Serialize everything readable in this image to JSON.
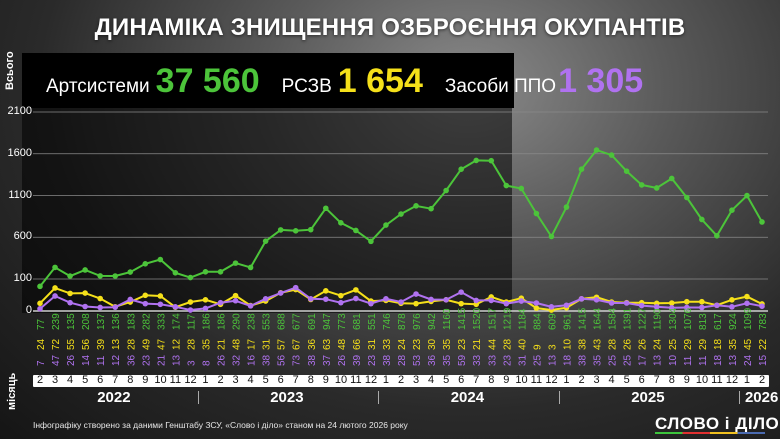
{
  "title": "ДИНАМІКА ЗНИЩЕННЯ ОЗБРОЄННЯ ОКУПАНТІВ",
  "totals": {
    "artillery_label": "Артсистеми",
    "artillery_value": "37 560",
    "mlrs_label": "РСЗВ",
    "mlrs_value": "1 654",
    "airdefense_label": "Засоби ППО",
    "airdefense_value": "1 305"
  },
  "axis": {
    "y_title": "Всього",
    "month_title": "місяць",
    "y_ticks": [
      "2100",
      "1600",
      "1100",
      "600",
      "100",
      "0"
    ]
  },
  "footnote": "Інфографіку створено за даними Генштабу ЗСУ, «Слово і діло» станом на 24 лютого 2026 року",
  "logo": "СЛОВО і ДІЛО",
  "years": [
    "2022",
    "2023",
    "2024",
    "2025",
    "2026"
  ],
  "colors": {
    "artillery": "#4cc43a",
    "mlrs": "#f5e01a",
    "airdefense": "#b072f0"
  },
  "chart_data": {
    "type": "line",
    "title": "Динаміка знищення озброєння окупантів",
    "xlabel": "місяць",
    "ylabel": "Всього",
    "ylim": [
      0,
      2100
    ],
    "y_ticks": [
      0,
      100,
      600,
      1100,
      1600,
      2100
    ],
    "grid": true,
    "legend_position": "top",
    "x": [
      "2022-02",
      "2022-03",
      "2022-04",
      "2022-05",
      "2022-06",
      "2022-07",
      "2022-08",
      "2022-09",
      "2022-10",
      "2022-11",
      "2022-12",
      "2023-01",
      "2023-02",
      "2023-03",
      "2023-04",
      "2023-05",
      "2023-06",
      "2023-07",
      "2023-08",
      "2023-09",
      "2023-10",
      "2023-11",
      "2023-12",
      "2024-01",
      "2024-02",
      "2024-03",
      "2024-04",
      "2024-05",
      "2024-06",
      "2024-07",
      "2024-08",
      "2024-09",
      "2024-10",
      "2024-11",
      "2024-12",
      "2025-01",
      "2025-02",
      "2025-03",
      "2025-04",
      "2025-05",
      "2025-06",
      "2025-07",
      "2025-08",
      "2025-09",
      "2025-10",
      "2025-11",
      "2025-12",
      "2026-01",
      "2026-02"
    ],
    "month_labels": [
      "2",
      "3",
      "4",
      "5",
      "6",
      "7",
      "8",
      "9",
      "10",
      "11",
      "12",
      "1",
      "2",
      "3",
      "4",
      "5",
      "6",
      "7",
      "8",
      "9",
      "10",
      "11",
      "12",
      "1",
      "2",
      "3",
      "4",
      "5",
      "6",
      "7",
      "8",
      "9",
      "10",
      "11",
      "12",
      "1",
      "2",
      "3",
      "4",
      "5",
      "6",
      "7",
      "8",
      "9",
      "10",
      "11",
      "12",
      "1",
      "2"
    ],
    "series": [
      {
        "name": "Артсистеми",
        "color": "#4cc43a",
        "values": [
          77,
          239,
          135,
          208,
          137,
          136,
          183,
          282,
          333,
          174,
          117,
          186,
          186,
          290,
          238,
          553,
          688,
          677,
          691,
          947,
          773,
          681,
          551,
          746,
          878,
          976,
          942,
          1160,
          1415,
          1520,
          1517,
          1219,
          1184,
          884,
          609,
          961,
          1415,
          1644,
          1584,
          1391,
          1227,
          1190,
          1304,
          1076,
          813,
          617,
          924,
          1099,
          783
        ]
      },
      {
        "name": "РСЗВ",
        "color": "#f5e01a",
        "values": [
          24,
          72,
          55,
          56,
          39,
          13,
          28,
          49,
          47,
          12,
          28,
          35,
          21,
          48,
          17,
          31,
          57,
          67,
          36,
          63,
          48,
          66,
          31,
          33,
          24,
          23,
          30,
          35,
          23,
          21,
          44,
          28,
          40,
          9,
          3,
          10,
          38,
          43,
          28,
          26,
          26,
          24,
          25,
          29,
          29,
          18,
          35,
          45,
          22
        ]
      },
      {
        "name": "Засоби ППО",
        "color": "#b072f0",
        "values": [
          7,
          47,
          26,
          14,
          11,
          12,
          36,
          23,
          21,
          13,
          3,
          8,
          26,
          32,
          16,
          38,
          56,
          73,
          38,
          37,
          26,
          39,
          23,
          38,
          28,
          53,
          36,
          35,
          59,
          33,
          33,
          23,
          31,
          25,
          13,
          18,
          38,
          35,
          25,
          25,
          17,
          13,
          10,
          11,
          11,
          18,
          13,
          24,
          15
        ]
      }
    ]
  }
}
